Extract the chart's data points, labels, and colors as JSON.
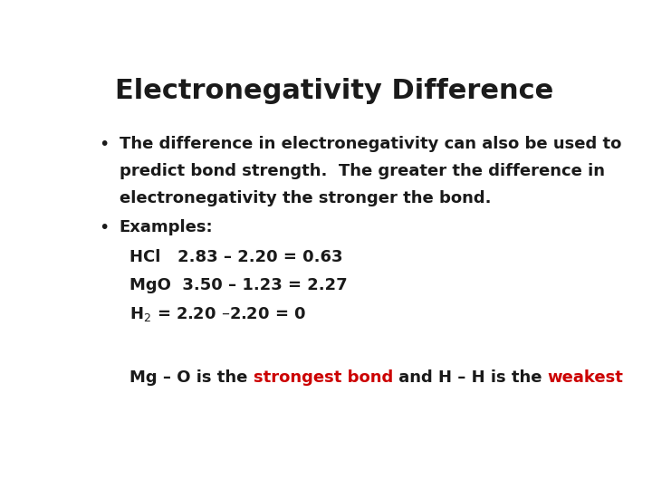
{
  "title": "Electronegativity Difference",
  "background_color": "#ffffff",
  "title_color": "#1a1a1a",
  "title_fontsize": 22,
  "body_fontsize": 13,
  "body_color": "#1a1a1a",
  "red_color": "#cc0000",
  "bullet1_line1": "The difference in electronegativity can also be used to",
  "bullet1_line2": "predict bond strength.  The greater the difference in",
  "bullet1_line3": "electronegativity the stronger the bond.",
  "bullet2": "Examples:",
  "example1": "HCl   2.83 – 2.20 = 0.63",
  "example2": "MgO  3.50 – 1.23 = 2.27",
  "example3": "H$_2$ = 2.20 –2.20 = 0",
  "final_pre": "Mg – O is the ",
  "final_red1": "strongest bond",
  "final_mid": " and H – H is the ",
  "final_red2": "weakest"
}
